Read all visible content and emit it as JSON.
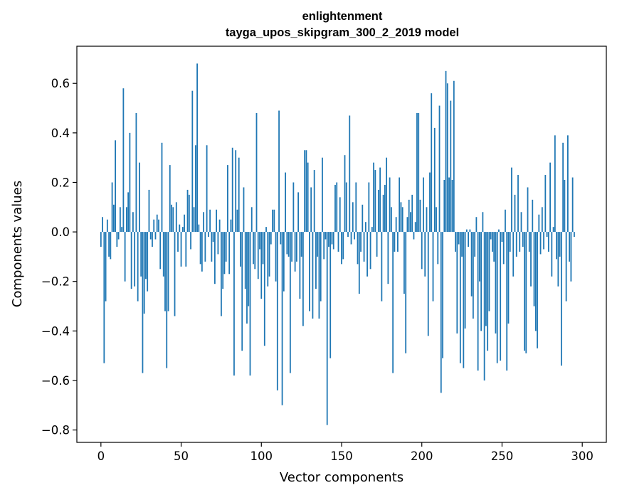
{
  "chart_data": {
    "type": "bar",
    "title": "enlightenment\ntayga_upos_skipgram_300_2_2019 model",
    "title_lines": [
      "enlightenment",
      "tayga_upos_skipgram_300_2_2019 model"
    ],
    "xlabel": "Vector components",
    "ylabel": "Components values",
    "xlim": [
      -15,
      315
    ],
    "ylim": [
      -0.85,
      0.75
    ],
    "xticks": [
      0,
      50,
      100,
      150,
      200,
      250,
      300
    ],
    "xtick_labels": [
      "0",
      "50",
      "100",
      "150",
      "200",
      "250",
      "300"
    ],
    "yticks": [
      -0.8,
      -0.6,
      -0.4,
      -0.2,
      0.0,
      0.2,
      0.4,
      0.6
    ],
    "ytick_labels": [
      "−0.8",
      "−0.6",
      "−0.4",
      "−0.2",
      "0.0",
      "0.2",
      "0.4",
      "0.6"
    ],
    "bar_color": "#1f77b4",
    "grid": false,
    "x_start": 0,
    "values": [
      -0.06,
      0.06,
      -0.53,
      -0.28,
      0.05,
      -0.1,
      -0.11,
      0.2,
      0.11,
      0.37,
      -0.06,
      -0.03,
      0.1,
      0.02,
      0.58,
      -0.2,
      0.1,
      0.16,
      0.4,
      -0.23,
      0.08,
      -0.22,
      0.48,
      -0.28,
      0.28,
      -0.18,
      -0.57,
      -0.33,
      -0.19,
      -0.24,
      0.17,
      -0.03,
      -0.06,
      0.05,
      -0.03,
      0.07,
      0.05,
      -0.15,
      0.36,
      -0.18,
      -0.32,
      -0.55,
      -0.32,
      0.27,
      0.11,
      0.1,
      -0.34,
      0.12,
      -0.08,
      0.03,
      -0.14,
      0.02,
      0.07,
      -0.14,
      0.17,
      0.15,
      -0.07,
      0.57,
      0.1,
      0.35,
      0.68,
      0.03,
      -0.13,
      -0.16,
      0.08,
      -0.12,
      0.35,
      -0.02,
      0.09,
      -0.12,
      -0.04,
      -0.21,
      0.09,
      -0.09,
      0.05,
      -0.34,
      -0.23,
      -0.17,
      -0.12,
      0.27,
      -0.17,
      0.05,
      0.34,
      -0.58,
      0.33,
      0.09,
      0.3,
      -0.14,
      -0.48,
      0.18,
      -0.23,
      -0.37,
      -0.3,
      -0.58,
      0.1,
      -0.13,
      -0.15,
      0.48,
      -0.19,
      -0.07,
      -0.27,
      -0.13,
      -0.46,
      0.02,
      -0.22,
      -0.18,
      -0.05,
      0.09,
      0.09,
      -0.2,
      -0.64,
      0.49,
      -0.05,
      -0.7,
      -0.24,
      0.24,
      -0.09,
      -0.1,
      -0.57,
      -0.12,
      0.2,
      -0.16,
      -0.12,
      0.16,
      -0.27,
      -0.1,
      -0.38,
      0.33,
      0.33,
      0.28,
      -0.32,
      0.18,
      -0.35,
      0.25,
      -0.23,
      -0.1,
      -0.35,
      -0.28,
      0.3,
      -0.11,
      -0.03,
      -0.78,
      -0.06,
      -0.51,
      -0.05,
      -0.07,
      0.19,
      0.2,
      -0.08,
      0.14,
      -0.13,
      -0.11,
      0.31,
      0.2,
      -0.02,
      0.47,
      -0.05,
      0.12,
      -0.03,
      0.2,
      -0.13,
      -0.25,
      -0.08,
      0.11,
      -0.12,
      0.04,
      -0.18,
      0.2,
      -0.15,
      0.02,
      0.28,
      0.25,
      -0.1,
      0.17,
      0.26,
      -0.28,
      0.15,
      0.19,
      0.3,
      -0.21,
      0.22,
      0.1,
      -0.57,
      -0.08,
      0.06,
      -0.08,
      0.22,
      0.12,
      0.1,
      -0.25,
      -0.49,
      0.06,
      0.13,
      0.08,
      0.15,
      -0.03,
      0.04,
      0.48,
      0.48,
      0.13,
      -0.15,
      0.22,
      -0.18,
      0.1,
      -0.42,
      0.24,
      0.56,
      -0.28,
      0.42,
      0.1,
      -0.13,
      0.51,
      -0.65,
      -0.51,
      0.21,
      0.65,
      0.6,
      0.22,
      0.53,
      0.21,
      0.61,
      -0.08,
      -0.41,
      -0.05,
      -0.53,
      -0.1,
      -0.55,
      -0.39,
      0.01,
      -0.06,
      0.01,
      -0.26,
      -0.35,
      -0.1,
      0.06,
      -0.56,
      -0.2,
      -0.4,
      0.08,
      -0.6,
      -0.38,
      -0.48,
      -0.32,
      -0.03,
      -0.08,
      -0.12,
      -0.41,
      -0.53,
      0.01,
      -0.52,
      -0.04,
      -0.13,
      0.09,
      -0.56,
      -0.37,
      -0.08,
      0.26,
      -0.18,
      0.15,
      -0.1,
      0.23,
      -0.08,
      0.08,
      -0.06,
      -0.48,
      -0.49,
      0.18,
      -0.08,
      -0.22,
      0.13,
      -0.3,
      -0.4,
      -0.47,
      0.07,
      -0.09,
      0.1,
      -0.07,
      0.23,
      -0.02,
      -0.08,
      0.28,
      -0.18,
      0.02,
      0.39,
      -0.11,
      -0.22,
      -0.1,
      -0.54,
      0.36,
      0.21,
      -0.28,
      0.39,
      -0.12,
      -0.2,
      0.22,
      -0.02
    ]
  }
}
